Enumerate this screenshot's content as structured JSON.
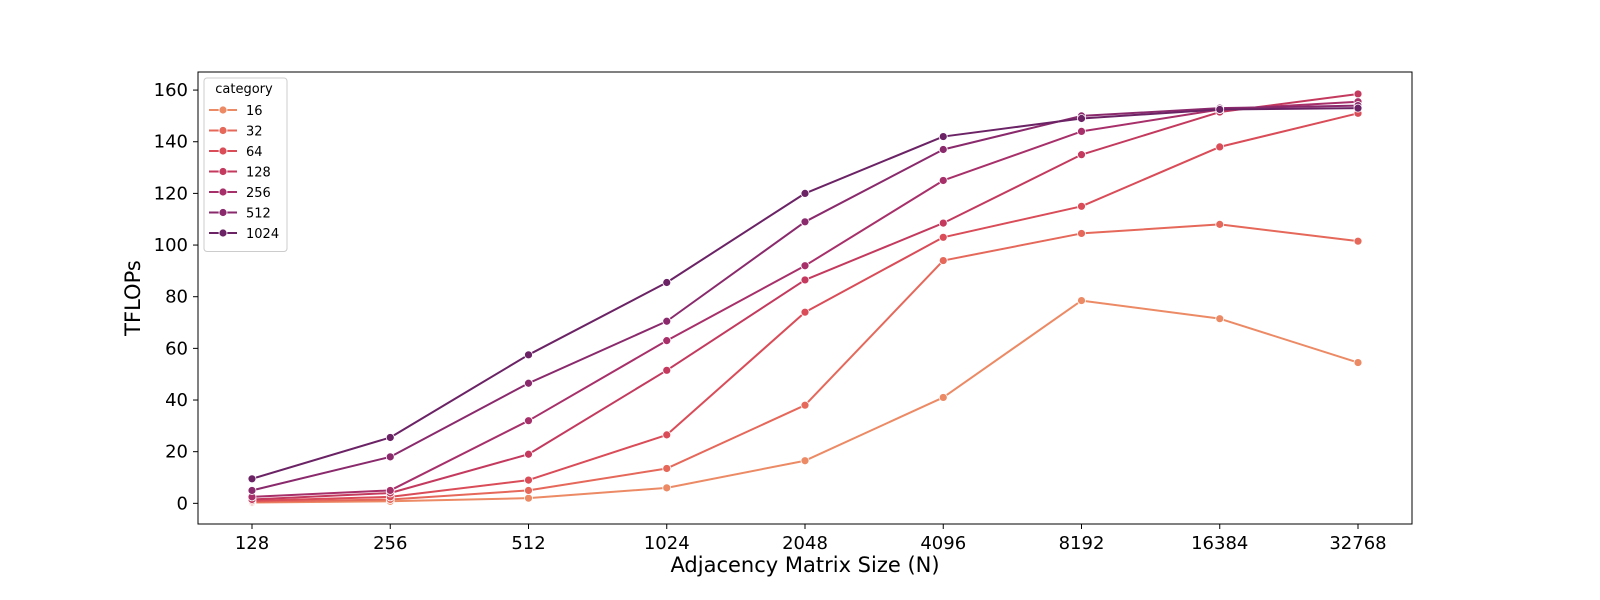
{
  "chart_data": {
    "type": "line",
    "title": "",
    "xlabel": "Adjacency Matrix Size (N)",
    "ylabel": "TFLOPs",
    "categories": [
      "128",
      "256",
      "512",
      "1024",
      "2048",
      "4096",
      "8192",
      "16384",
      "32768"
    ],
    "yticks": [
      "0",
      "20",
      "40",
      "60",
      "80",
      "100",
      "120",
      "140",
      "160"
    ],
    "ylim": [
      -8,
      167
    ],
    "grid": false,
    "legend": {
      "title": "category",
      "placement": "upper-left"
    },
    "series": [
      {
        "name": "16",
        "color": "#ec8a65",
        "values": [
          0.3,
          0.8,
          2.0,
          6.0,
          16.5,
          41.0,
          78.5,
          71.5,
          54.5
        ]
      },
      {
        "name": "32",
        "color": "#e5685a",
        "values": [
          0.6,
          1.5,
          5.0,
          13.5,
          38.0,
          94.0,
          104.5,
          108.0,
          101.5
        ]
      },
      {
        "name": "64",
        "color": "#d94c58",
        "values": [
          1.0,
          2.5,
          9.0,
          26.5,
          74.0,
          103.0,
          115.0,
          138.0,
          151.0
        ]
      },
      {
        "name": "128",
        "color": "#c43a5e",
        "values": [
          1.5,
          4.0,
          19.0,
          51.5,
          86.5,
          108.5,
          135.0,
          151.5,
          158.5
        ]
      },
      {
        "name": "256",
        "color": "#a8306a",
        "values": [
          2.5,
          5.0,
          32.0,
          63.0,
          92.0,
          125.0,
          144.0,
          152.5,
          155.5
        ]
      },
      {
        "name": "512",
        "color": "#8a2a6d",
        "values": [
          5.0,
          18.0,
          46.5,
          70.5,
          109.0,
          137.0,
          150.0,
          153.0,
          154.0
        ]
      },
      {
        "name": "1024",
        "color": "#6b2366",
        "values": [
          9.5,
          25.5,
          57.5,
          85.5,
          120.0,
          142.0,
          149.0,
          152.5,
          153.0
        ]
      }
    ]
  }
}
